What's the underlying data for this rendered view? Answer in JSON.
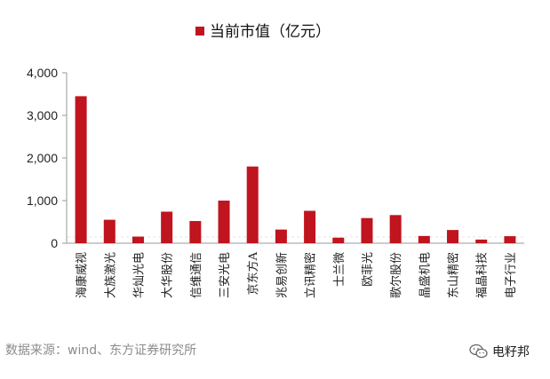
{
  "chart_data": {
    "type": "bar",
    "legend": {
      "label": "当前市值（亿元）",
      "color": "#c0141e",
      "position": "top-center"
    },
    "categories": [
      "海康威视",
      "大族激光",
      "华灿光电",
      "大华股份",
      "信维通信",
      "三安光电",
      "京东方A",
      "兆易创新",
      "立讯精密",
      "士兰微",
      "欧菲光",
      "歌尔股份",
      "晶盛机电",
      "东山精密",
      "福晶科技",
      "电子行业"
    ],
    "values": [
      3450,
      550,
      155,
      740,
      520,
      1000,
      1800,
      320,
      760,
      130,
      590,
      660,
      170,
      310,
      85,
      165
    ],
    "yticks": [
      "0",
      "1,000",
      "2,000",
      "3,000",
      "4,000"
    ],
    "ylim": [
      0,
      4000
    ],
    "bar_color": "#c0141e",
    "grid": false
  },
  "footer": {
    "source": "数据来源：wind、东方证券研究所",
    "watermark": "电籽邦",
    "watermark_icon": "wechat-icon"
  }
}
